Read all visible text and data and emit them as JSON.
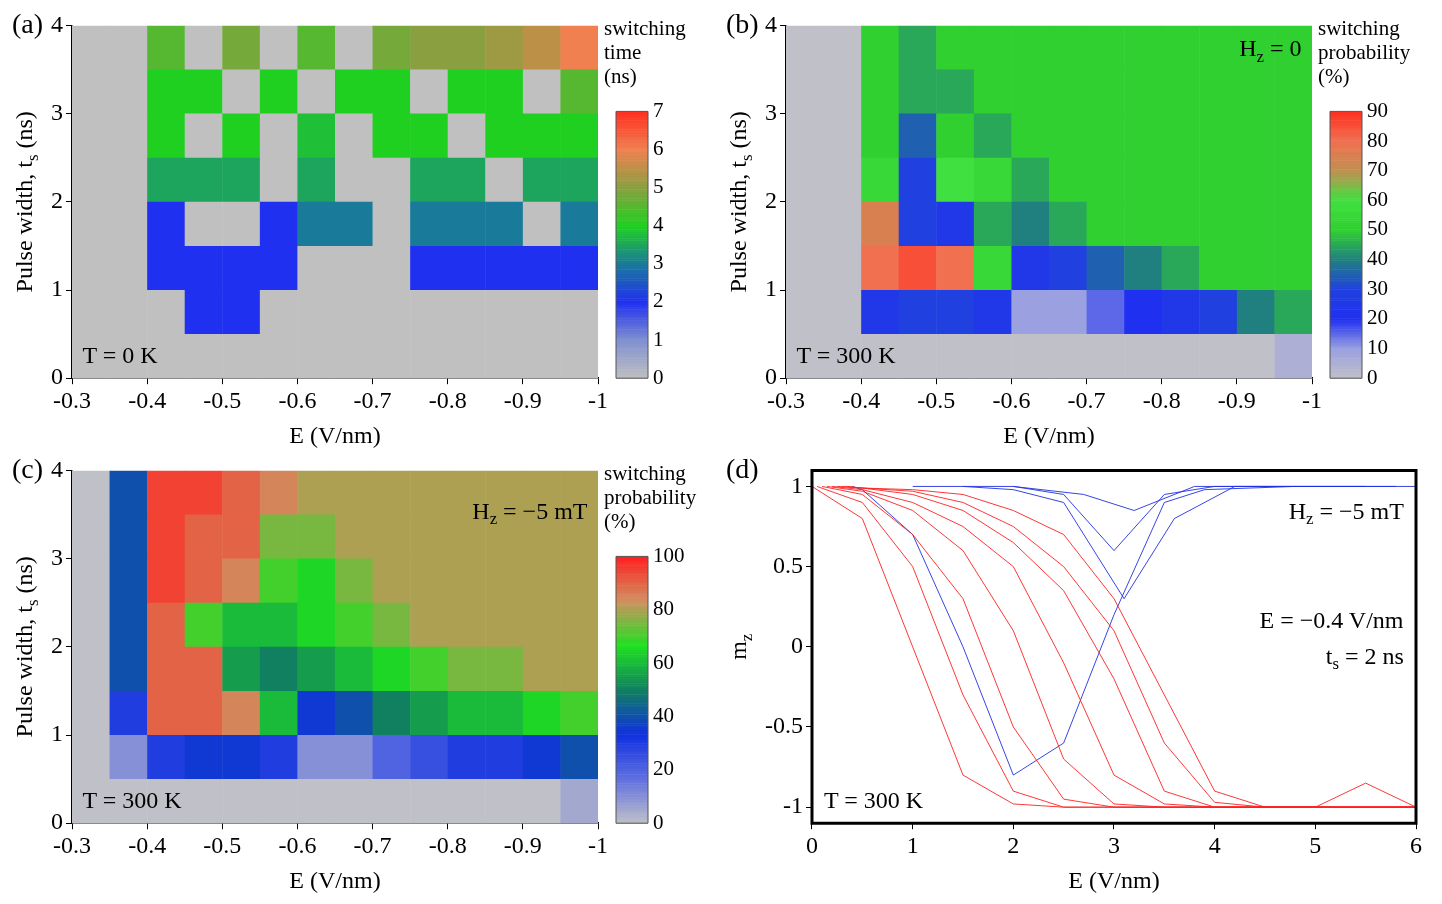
{
  "chart_data": [
    {
      "type": "heatmap",
      "title": "(a)",
      "xlabel": "E (V/nm)",
      "ylabel": "Pulse width, t$_{s}$ (ns)",
      "clabel": "switching time (ns)",
      "annotations": [
        "T = 0 K"
      ],
      "x": [
        -0.325,
        -0.375,
        -0.425,
        -0.475,
        -0.525,
        -0.575,
        -0.625,
        -0.675,
        -0.725,
        -0.775,
        -0.825,
        -0.875,
        -0.925,
        -0.975
      ],
      "y": [
        3.75,
        3.25,
        2.75,
        2.25,
        1.75,
        1.25,
        0.75,
        0.25
      ],
      "xlim": [
        -0.3,
        -1
      ],
      "xticks": [
        -0.3,
        -0.4,
        -0.5,
        -0.6,
        -0.7,
        -0.8,
        -0.9,
        -1
      ],
      "ylim": [
        0,
        4
      ],
      "yticks": [
        0,
        1,
        2,
        3,
        4
      ],
      "clim": [
        0,
        7
      ],
      "cticks": [
        0,
        1,
        2,
        3,
        4,
        5,
        6,
        7
      ],
      "colors": [
        "#c0c0c0",
        "#8090d0",
        "#2030f0",
        "#1a7a9a",
        "#20d020",
        "#8aa040",
        "#f08050",
        "#ff3020"
      ],
      "cells": [
        [
          0,
          0,
          4.5,
          0,
          4.8,
          0,
          4.5,
          0,
          4.8,
          5,
          5,
          5.2,
          5.5,
          6
        ],
        [
          0,
          0,
          4,
          4,
          0,
          4,
          0,
          4,
          4,
          0,
          4,
          4,
          0,
          4.5
        ],
        [
          0,
          0,
          4,
          0,
          4,
          0,
          3.8,
          0,
          4,
          4,
          0,
          4,
          4,
          4
        ],
        [
          0,
          0,
          3.5,
          3.5,
          3.5,
          0,
          3.5,
          0,
          0,
          3.5,
          3.5,
          0,
          3.5,
          3.5
        ],
        [
          0,
          0,
          2,
          0,
          0,
          2,
          3,
          3,
          0,
          3,
          3,
          3,
          0,
          3
        ],
        [
          0,
          0,
          2,
          2,
          2,
          2,
          0,
          0,
          0,
          2,
          2,
          2,
          2,
          2
        ],
        [
          0,
          0,
          0,
          2,
          2,
          0,
          0,
          0,
          0,
          0,
          0,
          0,
          0,
          0
        ],
        [
          0,
          0,
          0,
          0,
          0,
          0,
          0,
          0,
          0,
          0,
          0,
          0,
          0,
          0
        ]
      ]
    },
    {
      "type": "heatmap",
      "title": "(b)",
      "xlabel": "E (V/nm)",
      "ylabel": "Pulse width, t$_{s}$ (ns)",
      "clabel": "switching probability (%)",
      "annotations": [
        "H$_{z}$ = 0",
        "T = 300 K"
      ],
      "x": [
        -0.325,
        -0.375,
        -0.425,
        -0.475,
        -0.525,
        -0.575,
        -0.625,
        -0.675,
        -0.725,
        -0.775,
        -0.825,
        -0.875,
        -0.925,
        -0.975
      ],
      "y": [
        3.75,
        3.25,
        2.75,
        2.25,
        1.75,
        1.25,
        0.75,
        0.25
      ],
      "xlim": [
        -0.3,
        -1
      ],
      "xticks": [
        -0.3,
        -0.4,
        -0.5,
        -0.6,
        -0.7,
        -0.8,
        -0.9,
        -1
      ],
      "ylim": [
        0,
        4
      ],
      "yticks": [
        0,
        1,
        2,
        3,
        4
      ],
      "clim": [
        0,
        90
      ],
      "cticks": [
        0,
        10,
        20,
        30,
        40,
        50,
        60,
        70,
        80,
        90
      ],
      "colors": [
        "#c0c0c8",
        "#9aa0e0",
        "#2030f0",
        "#2040e0",
        "#208080",
        "#30d030",
        "#40e040",
        "#c09050",
        "#f07050",
        "#ff3020"
      ],
      "cells": [
        [
          0,
          0,
          50,
          45,
          50,
          50,
          50,
          50,
          50,
          50,
          50,
          50,
          50,
          50
        ],
        [
          0,
          0,
          50,
          45,
          45,
          50,
          50,
          50,
          50,
          50,
          50,
          50,
          50,
          50
        ],
        [
          0,
          0,
          50,
          35,
          50,
          45,
          50,
          50,
          50,
          50,
          50,
          50,
          50,
          50
        ],
        [
          0,
          0,
          55,
          30,
          60,
          55,
          45,
          50,
          50,
          50,
          50,
          50,
          50,
          50
        ],
        [
          0,
          0,
          75,
          30,
          25,
          45,
          40,
          45,
          50,
          50,
          50,
          50,
          50,
          50
        ],
        [
          0,
          0,
          80,
          85,
          80,
          55,
          25,
          30,
          35,
          40,
          45,
          50,
          50,
          50
        ],
        [
          0,
          0,
          25,
          30,
          30,
          25,
          10,
          10,
          15,
          20,
          25,
          30,
          40,
          45
        ],
        [
          0,
          0,
          0,
          0,
          0,
          0,
          0,
          0,
          0,
          0,
          0,
          0,
          0,
          5
        ]
      ]
    },
    {
      "type": "heatmap",
      "title": "(c)",
      "xlabel": "E (V/nm)",
      "ylabel": "Pulse width, t$_{s}$ (ns)",
      "clabel": "switching probability (%)",
      "annotations": [
        "H$_{z}$ = −5 mT",
        "T = 300 K"
      ],
      "x": [
        -0.325,
        -0.375,
        -0.425,
        -0.475,
        -0.525,
        -0.575,
        -0.625,
        -0.675,
        -0.725,
        -0.775,
        -0.825,
        -0.875,
        -0.925,
        -0.975
      ],
      "y": [
        3.75,
        3.25,
        2.75,
        2.25,
        1.75,
        1.25,
        0.75,
        0.25
      ],
      "xlim": [
        -0.3,
        -1
      ],
      "xticks": [
        -0.3,
        -0.4,
        -0.5,
        -0.6,
        -0.7,
        -0.8,
        -0.9,
        -1
      ],
      "ylim": [
        0,
        4
      ],
      "yticks": [
        0,
        1,
        2,
        3,
        4
      ],
      "clim": [
        0,
        100
      ],
      "cticks": [
        0,
        20,
        40,
        60,
        80,
        100
      ],
      "colors": [
        "#c0c0c8",
        "#6070e0",
        "#1030e0",
        "#108060",
        "#20e020",
        "#d09060",
        "#ff2020"
      ],
      "cells": [
        [
          0,
          40,
          95,
          95,
          90,
          85,
          80,
          80,
          80,
          80,
          80,
          80,
          80,
          80
        ],
        [
          0,
          40,
          95,
          90,
          90,
          75,
          75,
          80,
          80,
          80,
          80,
          80,
          80,
          80
        ],
        [
          0,
          40,
          95,
          90,
          85,
          70,
          65,
          75,
          80,
          80,
          80,
          80,
          80,
          80
        ],
        [
          0,
          40,
          90,
          70,
          60,
          60,
          65,
          70,
          75,
          80,
          80,
          80,
          80,
          80
        ],
        [
          0,
          40,
          90,
          90,
          55,
          50,
          55,
          60,
          65,
          70,
          75,
          75,
          80,
          80
        ],
        [
          0,
          30,
          90,
          90,
          85,
          60,
          35,
          40,
          50,
          55,
          60,
          60,
          65,
          70
        ],
        [
          0,
          10,
          30,
          35,
          35,
          30,
          10,
          10,
          20,
          25,
          30,
          30,
          35,
          40
        ],
        [
          0,
          0,
          0,
          0,
          0,
          0,
          0,
          0,
          0,
          0,
          0,
          0,
          0,
          5
        ]
      ]
    },
    {
      "type": "line",
      "title": "(d)",
      "xlabel": "E (V/nm)",
      "ylabel": "m$_{z}$",
      "annotations": [
        "H$_{z}$ = −5 mT",
        "E = −0.4 V/nm",
        "t$_{s}$ = 2 ns",
        "T = 300 K"
      ],
      "x": [
        0,
        0.5,
        1,
        1.5,
        2,
        2.5,
        3,
        3.5,
        4,
        4.5,
        5,
        5.5,
        6
      ],
      "xlim": [
        0,
        6
      ],
      "xticks": [
        0,
        1,
        2,
        3,
        4,
        5,
        6
      ],
      "ylim": [
        -1.1,
        1.1
      ],
      "yticks": [
        -1,
        -0.5,
        0,
        0.5,
        1
      ],
      "series": [
        {
          "color": "#ff2020",
          "values": [
            1,
            0.8,
            0,
            -0.8,
            -0.98,
            -1,
            -1,
            -1,
            -1,
            -1,
            -1,
            -1,
            -1
          ]
        },
        {
          "color": "#ff2020",
          "x": [
            0.05,
            0.5,
            1,
            1.5,
            2,
            2.5,
            3,
            3.5,
            4,
            4.5,
            5,
            5.5,
            6
          ],
          "values": [
            1,
            0.9,
            0.5,
            -0.3,
            -0.9,
            -1,
            -1,
            -1,
            -1,
            -1,
            -1,
            -1,
            -1
          ]
        },
        {
          "color": "#ff2020",
          "x": [
            0.1,
            0.5,
            1,
            1.5,
            2,
            2.5,
            3,
            3.5,
            4,
            4.5,
            5,
            5.5,
            6
          ],
          "values": [
            1,
            0.95,
            0.7,
            0.3,
            -0.5,
            -0.95,
            -1,
            -1,
            -1,
            -1,
            -1,
            -1,
            -1
          ]
        },
        {
          "color": "#ff2020",
          "x": [
            0.15,
            0.5,
            1,
            1.5,
            2,
            2.5,
            3,
            3.5,
            4,
            4.5,
            5,
            5.5,
            6
          ],
          "values": [
            1,
            0.97,
            0.85,
            0.6,
            0.1,
            -0.7,
            -0.98,
            -1,
            -1,
            -1,
            -1,
            -1,
            -1
          ]
        },
        {
          "color": "#ff2020",
          "x": [
            0.2,
            0.5,
            1,
            1.5,
            2,
            2.5,
            3,
            3.5,
            4,
            4.5,
            5,
            5.5,
            6
          ],
          "values": [
            1,
            0.98,
            0.9,
            0.75,
            0.5,
            -0.1,
            -0.8,
            -0.98,
            -1,
            -1,
            -1,
            -1,
            -1
          ]
        },
        {
          "color": "#ff2020",
          "x": [
            0.25,
            0.5,
            1,
            1.5,
            2,
            2.5,
            3,
            3.5,
            4,
            4.5,
            5,
            5.5,
            6
          ],
          "values": [
            1,
            0.99,
            0.95,
            0.85,
            0.65,
            0.35,
            -0.2,
            -0.9,
            -1,
            -1,
            -1,
            -1,
            -1
          ]
        },
        {
          "color": "#ff2020",
          "x": [
            0.3,
            0.5,
            1,
            1.5,
            2,
            2.5,
            3,
            3.5,
            4,
            4.5,
            5,
            5.5,
            6
          ],
          "values": [
            1,
            0.99,
            0.97,
            0.9,
            0.75,
            0.5,
            0.1,
            -0.6,
            -0.97,
            -1,
            -1,
            -1,
            -1
          ]
        },
        {
          "color": "#ff2020",
          "x": [
            0.35,
            0.5,
            1,
            1.5,
            2,
            2.5,
            3,
            3.5,
            4,
            4.5,
            5,
            5.5,
            6
          ],
          "values": [
            1,
            0.99,
            0.98,
            0.95,
            0.85,
            0.7,
            0.3,
            -0.3,
            -0.9,
            -1,
            -1,
            -0.85,
            -1
          ]
        },
        {
          "color": "#2030e0",
          "x": [
            1,
            2,
            2.5,
            3,
            3.5,
            4,
            5,
            6
          ],
          "values": [
            1,
            1,
            0.95,
            0.6,
            0.95,
            1,
            1,
            1
          ]
        },
        {
          "color": "#2030e0",
          "x": [
            1.5,
            2,
            2.5,
            3.1,
            3.6,
            4.2,
            5.5
          ],
          "values": [
            1,
            0.98,
            0.9,
            0.3,
            0.8,
            1,
            1
          ]
        },
        {
          "color": "#2030e0",
          "x": [
            2,
            2.7,
            3.2,
            3.8,
            5.8
          ],
          "values": [
            1,
            0.95,
            0.85,
            1,
            1
          ]
        },
        {
          "color": "#2030e0",
          "x": [
            0.4,
            0.5,
            1,
            1.5,
            2,
            2.5,
            3,
            3.5,
            3.9,
            4.8
          ],
          "values": [
            1,
            0.98,
            0.7,
            0,
            -0.8,
            -0.6,
            0.2,
            0.9,
            0.98,
            1
          ]
        }
      ]
    }
  ]
}
